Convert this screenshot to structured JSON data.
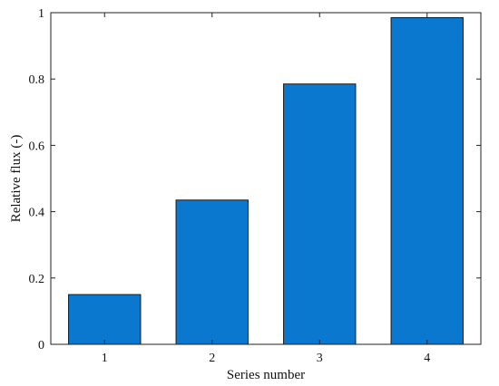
{
  "chart_data": {
    "type": "bar",
    "categories": [
      "1",
      "2",
      "3",
      "4"
    ],
    "values": [
      0.15,
      0.435,
      0.785,
      0.985
    ],
    "xlabel": "Series number",
    "ylabel": "Relative flux (-)",
    "ylim": [
      0,
      1
    ],
    "yticks": [
      "0",
      "0.2",
      "0.4",
      "0.6",
      "0.8",
      "1"
    ],
    "grid": false,
    "bar_color": "#0b78d0",
    "bar_edge_color": "#1a1a1a"
  }
}
